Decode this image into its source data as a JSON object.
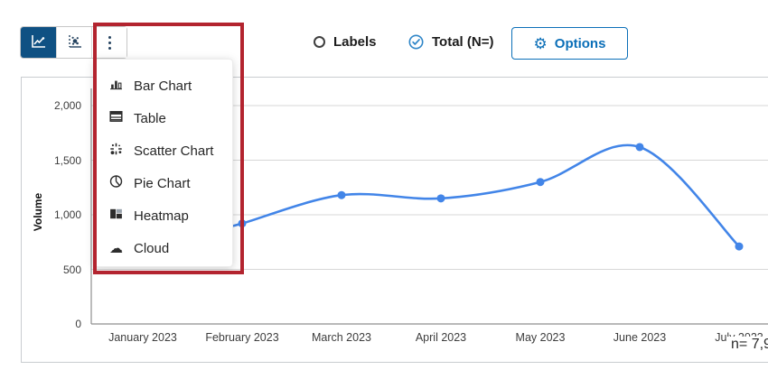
{
  "colors": {
    "selected_button_bg": "#0f5183",
    "options_blue": "#0b6fb8",
    "check_blue": "#2f86c8",
    "line_blue": "#4285e8",
    "annotation_red": "#b3242f"
  },
  "toolbar": {
    "buttons": [
      {
        "name": "line-chart",
        "selected": true
      },
      {
        "name": "scatter-chart",
        "selected": false
      },
      {
        "name": "more-chart-types",
        "selected": false
      }
    ]
  },
  "chart_menu": {
    "items": [
      {
        "label": "Bar Chart",
        "icon": "bar-chart-icon"
      },
      {
        "label": "Table",
        "icon": "table-icon"
      },
      {
        "label": "Scatter Chart",
        "icon": "scatter-chart-icon"
      },
      {
        "label": "Pie Chart",
        "icon": "pie-chart-icon"
      },
      {
        "label": "Heatmap",
        "icon": "heatmap-icon"
      },
      {
        "label": "Cloud",
        "icon": "cloud-icon"
      }
    ]
  },
  "controls": {
    "labels_radio": {
      "label": "Labels",
      "checked": false
    },
    "total_check": {
      "label": "Total (N=)",
      "checked": true
    },
    "options_button": {
      "label": "Options",
      "icon": "gear-icon"
    }
  },
  "footer": {
    "n_label": "n= 7,9"
  },
  "chart_data": {
    "type": "line",
    "title": "",
    "xlabel": "",
    "ylabel": "Volume",
    "categories": [
      "January 2023",
      "February 2023",
      "March 2023",
      "April 2023",
      "May 2023",
      "June 2023",
      "July 2023"
    ],
    "x_tick_labels": [
      "January 2023",
      "February 2023",
      "March 2023",
      "April 2023",
      "May 2023",
      "June 2023",
      "July 2023"
    ],
    "values": [
      null,
      920,
      1180,
      1150,
      1300,
      1620,
      710
    ],
    "ylim": [
      0,
      2000
    ],
    "y_ticks": [
      {
        "label": "0",
        "value": 0
      },
      {
        "label": "500",
        "value": 500
      },
      {
        "label": "1,000",
        "value": 1000
      },
      {
        "label": "1,500",
        "value": 1500
      },
      {
        "label": "2,000",
        "value": 2000
      }
    ],
    "grid": true,
    "legend": false,
    "line_color": "#4285e8",
    "point_color": "#4285e8"
  }
}
